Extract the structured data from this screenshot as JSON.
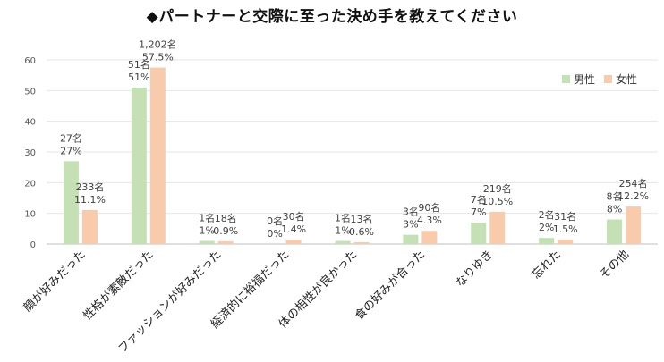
{
  "chart_data": {
    "type": "bar",
    "title": "◆パートナーと交際に至った決め手を教えてください",
    "categories": [
      "顔が好みだった",
      "性格が素敵だった",
      "ファッションが好みだった",
      "経済的に裕福だった",
      "体の相性が良かった",
      "食の好みが合った",
      "なりゆき",
      "忘れた",
      "その他"
    ],
    "ylim": [
      0,
      60
    ],
    "yticks": [
      0,
      10,
      20,
      30,
      40,
      50,
      60
    ],
    "legend_position": "top-right",
    "grid": true,
    "series": [
      {
        "name": "男性",
        "color": "#c5e0b4",
        "values": [
          27,
          51,
          1,
          0,
          1,
          3,
          7,
          2,
          8
        ],
        "counts": [
          "27名",
          "51名",
          "1名",
          "0名",
          "1名",
          "3名",
          "7名",
          "2名",
          "8名"
        ],
        "percents": [
          "27%",
          "51%",
          "1%",
          "0%",
          "1%",
          "3%",
          "7%",
          "2%",
          "8%"
        ]
      },
      {
        "name": "女性",
        "color": "#f8cbad",
        "values": [
          11.1,
          57.5,
          0.9,
          1.4,
          0.6,
          4.3,
          10.5,
          1.5,
          12.2
        ],
        "counts": [
          "233名",
          "1,202名",
          "18名",
          "30名",
          "13名",
          "90名",
          "219名",
          "31名",
          "254名"
        ],
        "percents": [
          "11.1%",
          "57.5%",
          "0.9%",
          "1.4%",
          "0.6%",
          "4.3%",
          "10.5%",
          "1.5%",
          "12.2%"
        ]
      }
    ]
  }
}
